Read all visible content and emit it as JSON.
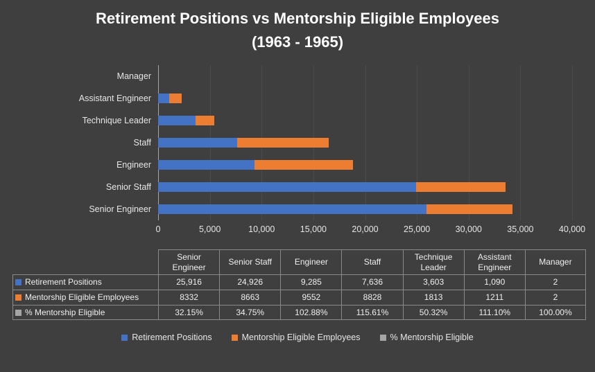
{
  "chart_data": {
    "type": "bar",
    "orientation": "horizontal",
    "stacked": true,
    "title": "Retirement Positions vs Mentorship Eligible Employees (1963 - 1965)",
    "categories": [
      "Senior Engineer",
      "Senior Staff",
      "Engineer",
      "Staff",
      "Technique Leader",
      "Assistant Engineer",
      "Manager"
    ],
    "row_order_top_to_bottom": [
      "Manager",
      "Assistant Engineer",
      "Technique Leader",
      "Staff",
      "Engineer",
      "Senior Staff",
      "Senior Engineer"
    ],
    "series": [
      {
        "name": "Retirement Positions",
        "color": "#4472C4",
        "in_bars": true,
        "values": [
          25916,
          24926,
          9285,
          7636,
          3603,
          1090,
          2
        ],
        "table_labels": [
          "25,916",
          "24,926",
          "9,285",
          "7,636",
          "3,603",
          "1,090",
          "2"
        ]
      },
      {
        "name": "Mentorship Eligible Employees",
        "color": "#ED7D31",
        "in_bars": true,
        "values": [
          8332,
          8663,
          9552,
          8828,
          1813,
          1211,
          2
        ],
        "table_labels": [
          "8332",
          "8663",
          "9552",
          "8828",
          "1813",
          "1211",
          "2"
        ]
      },
      {
        "name": "% Mentorship Eligible",
        "color": "#A5A5A5",
        "in_bars": false,
        "values": [
          32.15,
          34.75,
          102.88,
          115.61,
          50.32,
          111.1,
          100.0
        ],
        "table_labels": [
          "32.15%",
          "34.75%",
          "102.88%",
          "115.61%",
          "50.32%",
          "111.10%",
          "100.00%"
        ]
      }
    ],
    "x_axis": {
      "min": 0,
      "max": 40000,
      "tick_interval": 5000,
      "tick_labels": [
        "0",
        "5,000",
        "10,000",
        "15,000",
        "20,000",
        "25,000",
        "30,000",
        "35,000",
        "40,000"
      ]
    },
    "legend_position": "bottom",
    "grid": true
  },
  "colors": {
    "background": "#3F3F3F",
    "title_text": "#FFFFFF",
    "axis_text": "#E6E6E6",
    "table_border": "#8A8A8A",
    "axis_line": "#A6A6A6"
  }
}
